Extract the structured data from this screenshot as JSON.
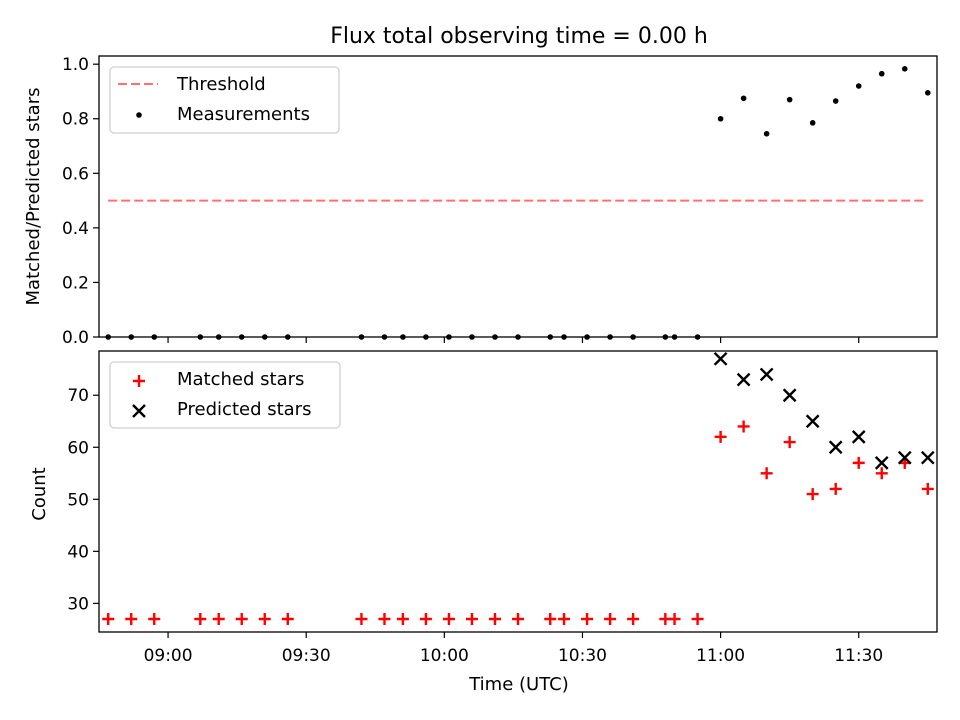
{
  "chart_data": [
    {
      "type": "scatter",
      "title": "Flux total observing time = 0.00 h",
      "xlabel": "",
      "ylabel": "Matched/Predicted stars",
      "ylim": [
        0.0,
        1.03
      ],
      "yticks": [
        0.0,
        0.2,
        0.4,
        0.6,
        0.8,
        1.0
      ],
      "ytick_labels": [
        "0.0",
        "0.2",
        "0.4",
        "0.6",
        "0.8",
        "1.0"
      ],
      "xtick_labels_shown": false,
      "grid": false,
      "legend_position": "top-left",
      "threshold": {
        "name": "Threshold",
        "value": 0.5,
        "x_range": [
          "08:47",
          "11:44"
        ],
        "color": "#ff7070",
        "style": "dashed"
      },
      "series": [
        {
          "name": "Measurements",
          "marker": "dot",
          "color": "#000000",
          "points": [
            [
              "08:47",
              0.0
            ],
            [
              "08:52",
              0.0
            ],
            [
              "08:57",
              0.0
            ],
            [
              "09:07",
              0.0
            ],
            [
              "09:11",
              0.0
            ],
            [
              "09:16",
              0.0
            ],
            [
              "09:21",
              0.0
            ],
            [
              "09:26",
              0.0
            ],
            [
              "09:42",
              0.0
            ],
            [
              "09:47",
              0.0
            ],
            [
              "09:51",
              0.0
            ],
            [
              "09:56",
              0.0
            ],
            [
              "10:01",
              0.0
            ],
            [
              "10:06",
              0.0
            ],
            [
              "10:11",
              0.0
            ],
            [
              "10:16",
              0.0
            ],
            [
              "10:23",
              0.0
            ],
            [
              "10:26",
              0.0
            ],
            [
              "10:31",
              0.0
            ],
            [
              "10:36",
              0.0
            ],
            [
              "10:41",
              0.0
            ],
            [
              "10:48",
              0.0
            ],
            [
              "10:50",
              0.0
            ],
            [
              "10:55",
              0.0
            ],
            [
              "11:00",
              0.8
            ],
            [
              "11:05",
              0.875
            ],
            [
              "11:10",
              0.745
            ],
            [
              "11:15",
              0.87
            ],
            [
              "11:20",
              0.785
            ],
            [
              "11:25",
              0.865
            ],
            [
              "11:30",
              0.92
            ],
            [
              "11:35",
              0.965
            ],
            [
              "11:40",
              0.983
            ],
            [
              "11:45",
              0.895
            ]
          ]
        }
      ]
    },
    {
      "type": "scatter",
      "title": "",
      "xlabel": "Time (UTC)",
      "ylabel": "Count",
      "ylim": [
        24.5,
        78.5
      ],
      "yticks": [
        30,
        40,
        50,
        60,
        70
      ],
      "ytick_labels": [
        "30",
        "40",
        "50",
        "60",
        "70"
      ],
      "xlim": [
        "08:45",
        "11:47"
      ],
      "xticks": [
        "09:00",
        "09:30",
        "10:00",
        "10:30",
        "11:00",
        "11:30"
      ],
      "xtick_labels": [
        "09:00",
        "09:30",
        "10:00",
        "10:30",
        "11:00",
        "11:30"
      ],
      "grid": false,
      "legend_position": "top-left",
      "series": [
        {
          "name": "Matched stars",
          "marker": "plus",
          "color": "#ff0000",
          "points": [
            [
              "08:47",
              27
            ],
            [
              "08:52",
              27
            ],
            [
              "08:57",
              27
            ],
            [
              "09:07",
              27
            ],
            [
              "09:11",
              27
            ],
            [
              "09:16",
              27
            ],
            [
              "09:21",
              27
            ],
            [
              "09:26",
              27
            ],
            [
              "09:42",
              27
            ],
            [
              "09:47",
              27
            ],
            [
              "09:51",
              27
            ],
            [
              "09:56",
              27
            ],
            [
              "10:01",
              27
            ],
            [
              "10:06",
              27
            ],
            [
              "10:11",
              27
            ],
            [
              "10:16",
              27
            ],
            [
              "10:23",
              27
            ],
            [
              "10:26",
              27
            ],
            [
              "10:31",
              27
            ],
            [
              "10:36",
              27
            ],
            [
              "10:41",
              27
            ],
            [
              "10:48",
              27
            ],
            [
              "10:50",
              27
            ],
            [
              "10:55",
              27
            ],
            [
              "11:00",
              62
            ],
            [
              "11:05",
              64
            ],
            [
              "11:10",
              55
            ],
            [
              "11:15",
              61
            ],
            [
              "11:20",
              51
            ],
            [
              "11:25",
              52
            ],
            [
              "11:30",
              57
            ],
            [
              "11:35",
              55
            ],
            [
              "11:40",
              57
            ],
            [
              "11:45",
              52
            ]
          ]
        },
        {
          "name": "Predicted stars",
          "marker": "x",
          "color": "#000000",
          "points": [
            [
              "11:00",
              77
            ],
            [
              "11:05",
              73
            ],
            [
              "11:10",
              74
            ],
            [
              "11:15",
              70
            ],
            [
              "11:20",
              65
            ],
            [
              "11:25",
              60
            ],
            [
              "11:30",
              62
            ],
            [
              "11:35",
              57
            ],
            [
              "11:40",
              58
            ],
            [
              "11:45",
              58
            ]
          ]
        }
      ]
    }
  ]
}
